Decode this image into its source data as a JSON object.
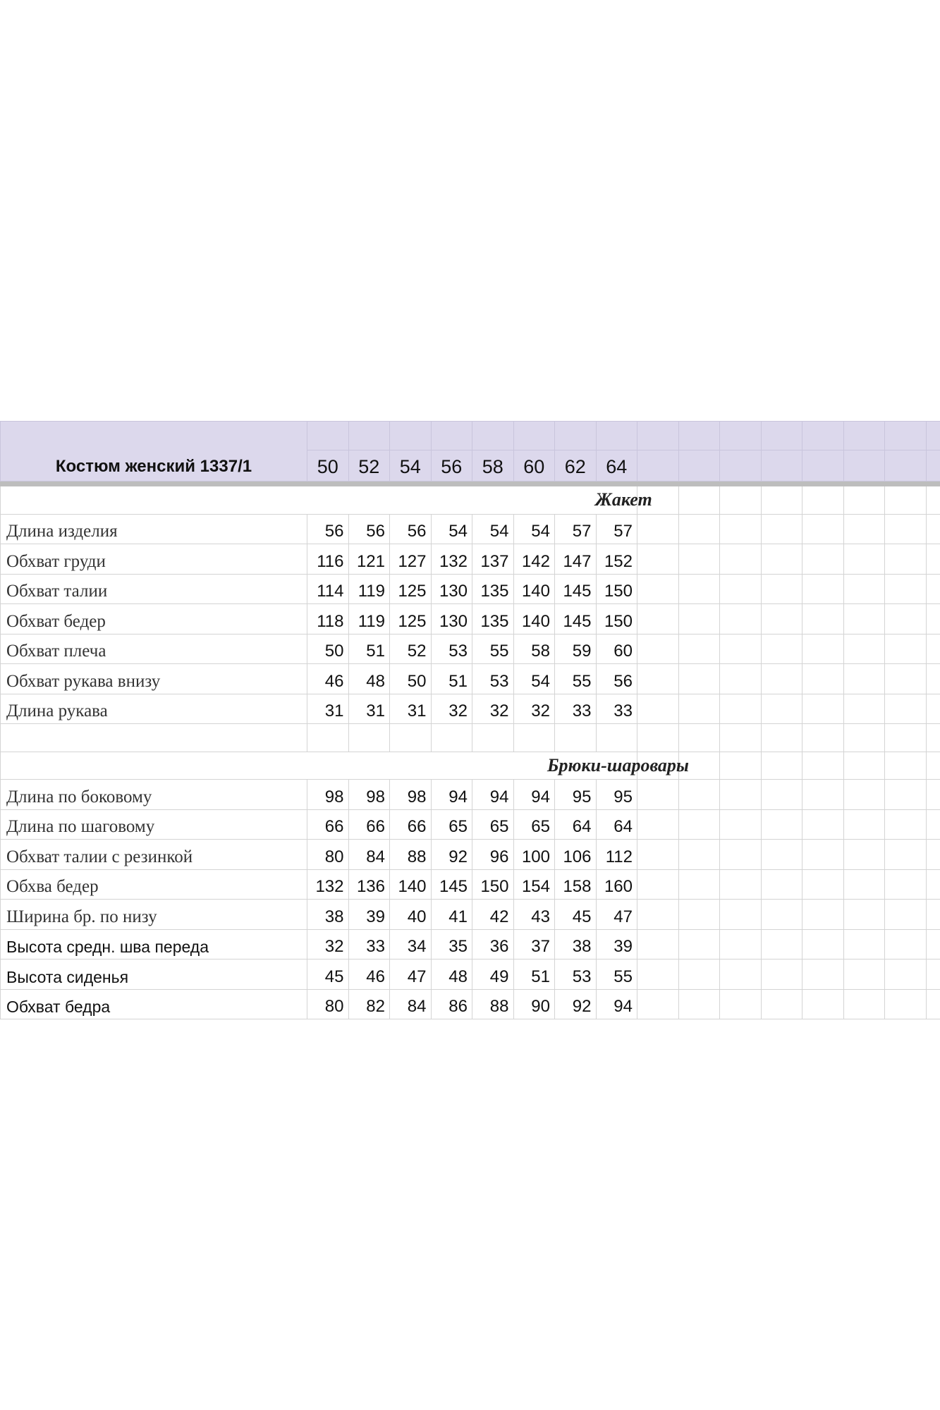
{
  "title": "Костюм женский 1337/1",
  "sizes": [
    "50",
    "52",
    "54",
    "56",
    "58",
    "60",
    "62",
    "64"
  ],
  "colors": {
    "header_bg": "#dcd8ec",
    "grid": "#d4d4d4"
  },
  "sections": [
    {
      "name": "Жакет",
      "rows": [
        {
          "label": "Длина изделия",
          "values": [
            "56",
            "56",
            "56",
            "54",
            "54",
            "54",
            "57",
            "57"
          ]
        },
        {
          "label": "Обхват груди",
          "values": [
            "116",
            "121",
            "127",
            "132",
            "137",
            "142",
            "147",
            "152"
          ]
        },
        {
          "label": "Обхват талии",
          "values": [
            "114",
            "119",
            "125",
            "130",
            "135",
            "140",
            "145",
            "150"
          ]
        },
        {
          "label": "Обхват бедер",
          "values": [
            "118",
            "119",
            "125",
            "130",
            "135",
            "140",
            "145",
            "150"
          ]
        },
        {
          "label": "Обхват плеча",
          "values": [
            "50",
            "51",
            "52",
            "53",
            "55",
            "58",
            "59",
            "60"
          ]
        },
        {
          "label": "Обхват рукава внизу",
          "values": [
            "46",
            "48",
            "50",
            "51",
            "53",
            "54",
            "55",
            "56"
          ]
        },
        {
          "label": "Длина рукава",
          "values": [
            "31",
            "31",
            "31",
            "32",
            "32",
            "32",
            "33",
            "33"
          ]
        }
      ]
    },
    {
      "name": "Брюки-шаровары",
      "rows": [
        {
          "label": "Длина по боковому",
          "values": [
            "98",
            "98",
            "98",
            "94",
            "94",
            "94",
            "95",
            "95"
          ]
        },
        {
          "label": "Длина по шаговому",
          "values": [
            "66",
            "66",
            "66",
            "65",
            "65",
            "65",
            "64",
            "64"
          ]
        },
        {
          "label": "Обхват талии с резинкой",
          "values": [
            "80",
            "84",
            "88",
            "92",
            "96",
            "100",
            "106",
            "112"
          ]
        },
        {
          "label": "Обхва бедер",
          "values": [
            "132",
            "136",
            "140",
            "145",
            "150",
            "154",
            "158",
            "160"
          ]
        },
        {
          "label": "Ширина бр. по низу",
          "values": [
            "38",
            "39",
            "40",
            "41",
            "42",
            "43",
            "45",
            "47"
          ]
        },
        {
          "label": "Высота средн. шва переда",
          "values": [
            "32",
            "33",
            "34",
            "35",
            "36",
            "37",
            "38",
            "39"
          ],
          "sans": true
        },
        {
          "label": "Высота сиденья",
          "values": [
            "45",
            "46",
            "47",
            "48",
            "49",
            "51",
            "53",
            "55"
          ],
          "sans": true
        },
        {
          "label": "Обхват бедра",
          "values": [
            "80",
            "82",
            "84",
            "86",
            "88",
            "90",
            "92",
            "94"
          ],
          "sans": true
        }
      ]
    }
  ]
}
